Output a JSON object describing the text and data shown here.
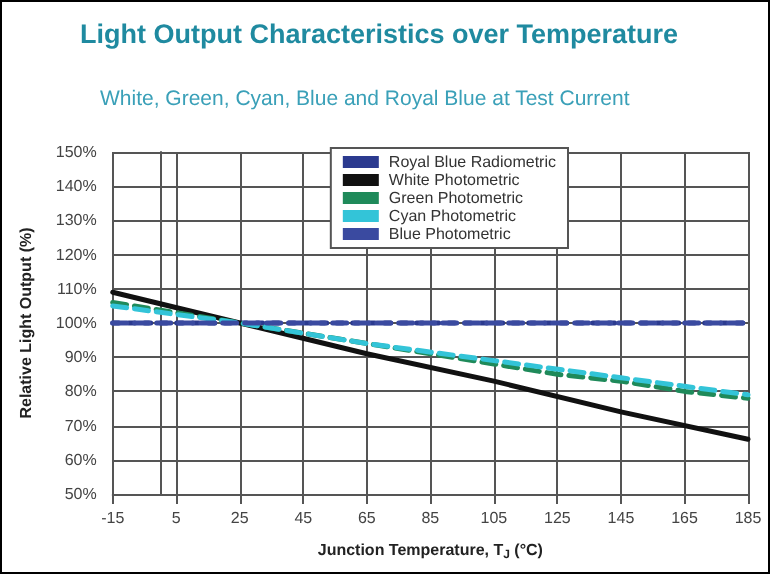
{
  "chart_data": {
    "type": "line",
    "title": "Light Output Characteristics over Temperature",
    "subtitle": "White, Green, Cyan, Blue and Royal Blue at Test Current",
    "xlabel": "Junction Temperature, T$_{J}$ (°C)",
    "ylabel": "Relative Light Output (%)",
    "xlim": [
      -15,
      185
    ],
    "xticks": [
      -15,
      5,
      25,
      45,
      65,
      85,
      105,
      125,
      145,
      165,
      185
    ],
    "ylim": [
      50,
      150
    ],
    "yticks": [
      {
        "value": 50,
        "label": "50%"
      },
      {
        "value": 60,
        "label": "60%"
      },
      {
        "value": 70,
        "label": "70%"
      },
      {
        "value": 80,
        "label": "80%"
      },
      {
        "value": 90,
        "label": "90%"
      },
      {
        "value": 100,
        "label": "100%"
      },
      {
        "value": 110,
        "label": "110%"
      },
      {
        "value": 120,
        "label": "120%"
      },
      {
        "value": 130,
        "label": "130%"
      },
      {
        "value": 140,
        "label": "140%"
      },
      {
        "value": 150,
        "label": "150%"
      }
    ],
    "grid": true,
    "legend": "top right",
    "marker": "none",
    "series": [
      {
        "name": "Royal Blue Radiometric",
        "color": "#2b3a8f",
        "line_style": "dotted",
        "x": [
          -15,
          185
        ],
        "values": [
          100,
          100
        ]
      },
      {
        "name": "White Photometric",
        "color": "#111111",
        "line_style": "solid",
        "x": [
          -15,
          25,
          65,
          105,
          145,
          185
        ],
        "values": [
          109,
          100,
          91,
          83,
          74,
          66
        ]
      },
      {
        "name": "Green Photometric",
        "color": "#1f8a5a",
        "line_style": "dashed",
        "x": [
          -15,
          5,
          25,
          45,
          65,
          85,
          105,
          125,
          145,
          165,
          185
        ],
        "values": [
          106,
          103,
          100,
          97,
          94,
          91,
          88,
          85,
          83,
          80,
          78
        ]
      },
      {
        "name": "Cyan Photometric",
        "color": "#33c4d8",
        "line_style": "dashed",
        "x": [
          -15,
          25,
          65,
          105,
          145,
          185
        ],
        "values": [
          105,
          100,
          94,
          89,
          84,
          79
        ]
      },
      {
        "name": "Blue Photometric",
        "color": "#3a4aa0",
        "line_style": "dashed",
        "x": [
          -15,
          185
        ],
        "values": [
          100,
          100
        ]
      }
    ]
  }
}
